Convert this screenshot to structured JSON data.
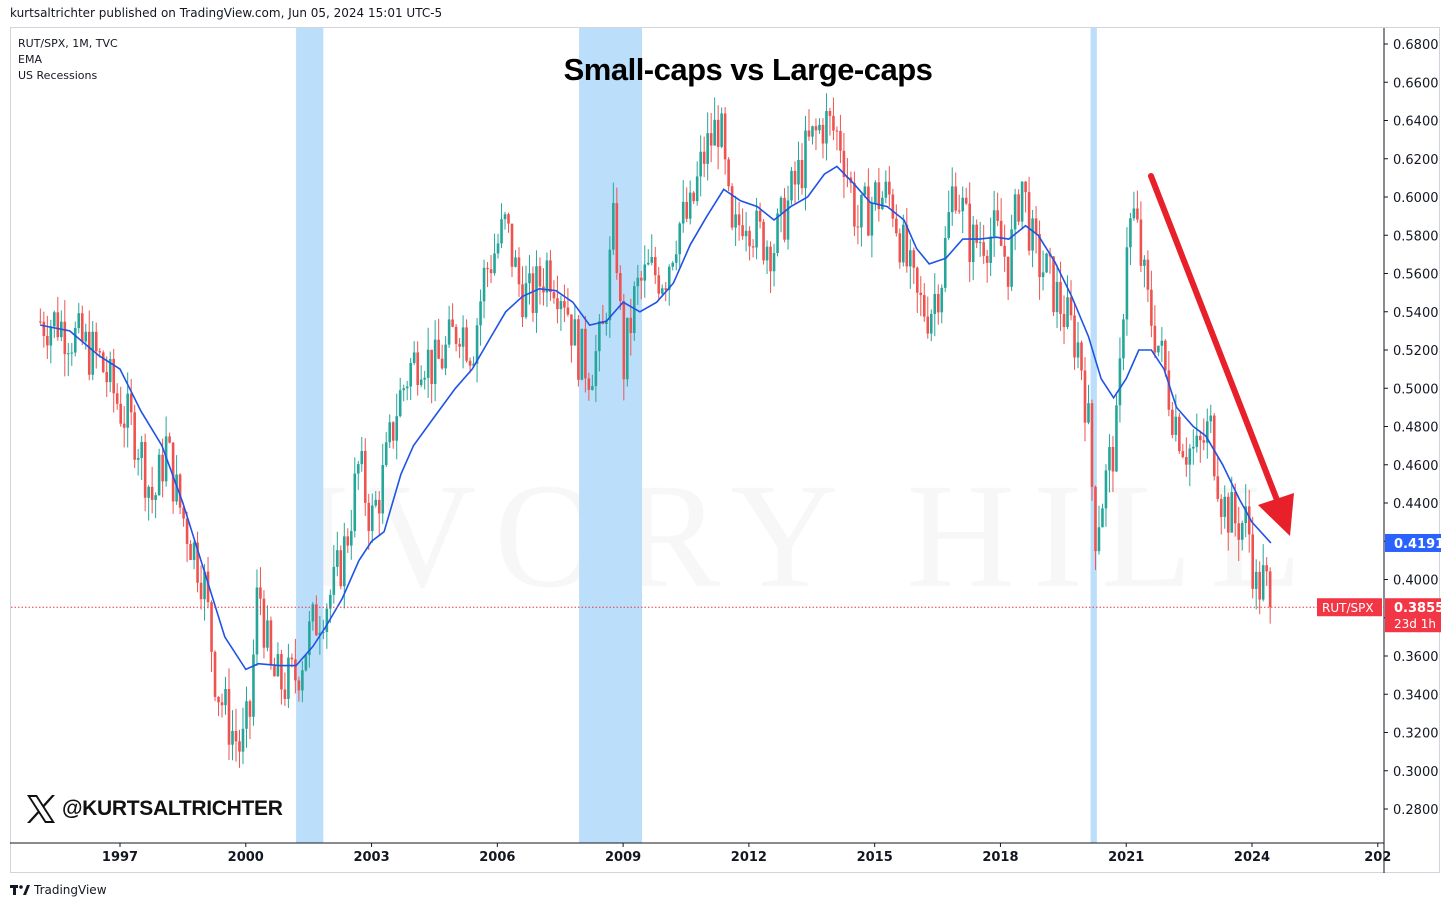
{
  "header": {
    "publisher": "kurtsaltrichter published on TradingView.com, Jun 05, 2024 15:01 UTC-5"
  },
  "legend": {
    "line1": "RUT/SPX, 1M, TVC",
    "line2": "EMA",
    "line3": "US Recessions"
  },
  "watermark": "IVORY HILL",
  "handle": "@KURTSALTRICHTER",
  "footer": {
    "brand": "TradingView"
  },
  "colors": {
    "up": "#26a69a",
    "down": "#ef5350",
    "ema": "#1e53e5",
    "recession": "#bbdefb",
    "arrow": "#e8202a",
    "price_label": "#f23645",
    "ema_label": "#2962ff"
  },
  "chart_data": {
    "type": "candlestick",
    "title": "Small-caps vs Large-caps",
    "symbol": "RUT/SPX",
    "ylim": [
      0.27,
      0.69
    ],
    "y_ticks": [
      "0.2800",
      "0.3000",
      "0.3200",
      "0.3400",
      "0.3600",
      "0.3800",
      "0.4000",
      "0.4200",
      "0.4400",
      "0.4600",
      "0.4800",
      "0.5000",
      "0.5200",
      "0.5400",
      "0.5600",
      "0.5800",
      "0.6000",
      "0.6200",
      "0.6400",
      "0.6600",
      "0.6800"
    ],
    "x_ticks": [
      "1997",
      "2000",
      "2003",
      "2006",
      "2009",
      "2012",
      "2015",
      "2018",
      "2021",
      "2024",
      "202"
    ],
    "x_range": [
      1995.1,
      2027.0
    ],
    "recessions": [
      [
        2001.2,
        2001.85
      ],
      [
        2007.95,
        2009.45
      ],
      [
        2020.15,
        2020.3
      ]
    ],
    "series_close": [
      [
        1995.1,
        0.535
      ],
      [
        1995.5,
        0.535
      ],
      [
        1996.0,
        0.525
      ],
      [
        1996.5,
        0.515
      ],
      [
        1997.0,
        0.49
      ],
      [
        1997.4,
        0.475
      ],
      [
        1997.8,
        0.44
      ],
      [
        1998.1,
        0.47
      ],
      [
        1998.4,
        0.44
      ],
      [
        1998.7,
        0.42
      ],
      [
        1999.0,
        0.4
      ],
      [
        1999.3,
        0.345
      ],
      [
        1999.6,
        0.325
      ],
      [
        1999.9,
        0.31
      ],
      [
        2000.1,
        0.33
      ],
      [
        2000.3,
        0.4
      ],
      [
        2000.6,
        0.35
      ],
      [
        2000.9,
        0.345
      ],
      [
        2001.2,
        0.35
      ],
      [
        2001.5,
        0.37
      ],
      [
        2001.8,
        0.385
      ],
      [
        2002.1,
        0.395
      ],
      [
        2002.4,
        0.42
      ],
      [
        2002.7,
        0.46
      ],
      [
        2003.0,
        0.43
      ],
      [
        2003.3,
        0.455
      ],
      [
        2003.6,
        0.49
      ],
      [
        2003.9,
        0.51
      ],
      [
        2004.2,
        0.52
      ],
      [
        2004.5,
        0.51
      ],
      [
        2004.8,
        0.52
      ],
      [
        2005.1,
        0.535
      ],
      [
        2005.4,
        0.52
      ],
      [
        2005.7,
        0.56
      ],
      [
        2006.0,
        0.575
      ],
      [
        2006.2,
        0.585
      ],
      [
        2006.5,
        0.555
      ],
      [
        2006.8,
        0.545
      ],
      [
        2007.2,
        0.565
      ],
      [
        2007.6,
        0.55
      ],
      [
        2007.9,
        0.52
      ],
      [
        2008.2,
        0.51
      ],
      [
        2008.5,
        0.525
      ],
      [
        2008.8,
        0.59
      ],
      [
        2009.0,
        0.51
      ],
      [
        2009.3,
        0.55
      ],
      [
        2009.6,
        0.56
      ],
      [
        2010.0,
        0.56
      ],
      [
        2010.3,
        0.585
      ],
      [
        2010.6,
        0.59
      ],
      [
        2010.9,
        0.62
      ],
      [
        2011.3,
        0.64
      ],
      [
        2011.6,
        0.575
      ],
      [
        2011.9,
        0.595
      ],
      [
        2012.2,
        0.58
      ],
      [
        2012.6,
        0.575
      ],
      [
        2013.0,
        0.6
      ],
      [
        2013.4,
        0.625
      ],
      [
        2013.8,
        0.64
      ],
      [
        2014.2,
        0.63
      ],
      [
        2014.6,
        0.585
      ],
      [
        2015.0,
        0.6
      ],
      [
        2015.4,
        0.6
      ],
      [
        2015.7,
        0.57
      ],
      [
        2016.0,
        0.545
      ],
      [
        2016.3,
        0.54
      ],
      [
        2016.6,
        0.56
      ],
      [
        2016.9,
        0.61
      ],
      [
        2017.3,
        0.575
      ],
      [
        2017.6,
        0.58
      ],
      [
        2017.9,
        0.58
      ],
      [
        2018.2,
        0.565
      ],
      [
        2018.5,
        0.61
      ],
      [
        2018.8,
        0.57
      ],
      [
        2019.1,
        0.56
      ],
      [
        2019.5,
        0.54
      ],
      [
        2019.9,
        0.52
      ],
      [
        2020.1,
        0.48
      ],
      [
        2020.25,
        0.425
      ],
      [
        2020.5,
        0.45
      ],
      [
        2020.8,
        0.48
      ],
      [
        2021.0,
        0.58
      ],
      [
        2021.2,
        0.59
      ],
      [
        2021.5,
        0.545
      ],
      [
        2021.8,
        0.52
      ],
      [
        2022.1,
        0.49
      ],
      [
        2022.4,
        0.47
      ],
      [
        2022.7,
        0.465
      ],
      [
        2023.0,
        0.48
      ],
      [
        2023.3,
        0.44
      ],
      [
        2023.6,
        0.43
      ],
      [
        2023.9,
        0.43
      ],
      [
        2024.1,
        0.395
      ],
      [
        2024.3,
        0.4
      ],
      [
        2024.45,
        0.3855
      ]
    ],
    "ema": [
      [
        1995.1,
        0.533
      ],
      [
        1995.8,
        0.53
      ],
      [
        1996.5,
        0.517
      ],
      [
        1997.0,
        0.51
      ],
      [
        1997.5,
        0.488
      ],
      [
        1998.0,
        0.47
      ],
      [
        1998.5,
        0.44
      ],
      [
        1999.0,
        0.405
      ],
      [
        1999.5,
        0.37
      ],
      [
        2000.0,
        0.353
      ],
      [
        2000.3,
        0.356
      ],
      [
        2000.8,
        0.355
      ],
      [
        2001.2,
        0.355
      ],
      [
        2001.6,
        0.365
      ],
      [
        2001.9,
        0.375
      ],
      [
        2002.3,
        0.39
      ],
      [
        2002.7,
        0.41
      ],
      [
        2003.0,
        0.42
      ],
      [
        2003.3,
        0.425
      ],
      [
        2003.7,
        0.455
      ],
      [
        2004.0,
        0.47
      ],
      [
        2004.5,
        0.485
      ],
      [
        2005.0,
        0.5
      ],
      [
        2005.4,
        0.51
      ],
      [
        2005.8,
        0.525
      ],
      [
        2006.2,
        0.54
      ],
      [
        2006.6,
        0.548
      ],
      [
        2007.0,
        0.552
      ],
      [
        2007.4,
        0.551
      ],
      [
        2007.8,
        0.545
      ],
      [
        2008.2,
        0.533
      ],
      [
        2008.6,
        0.535
      ],
      [
        2009.0,
        0.545
      ],
      [
        2009.4,
        0.54
      ],
      [
        2009.8,
        0.545
      ],
      [
        2010.2,
        0.555
      ],
      [
        2010.6,
        0.575
      ],
      [
        2011.0,
        0.59
      ],
      [
        2011.4,
        0.604
      ],
      [
        2011.8,
        0.598
      ],
      [
        2012.2,
        0.595
      ],
      [
        2012.6,
        0.588
      ],
      [
        2013.0,
        0.595
      ],
      [
        2013.4,
        0.6
      ],
      [
        2013.8,
        0.612
      ],
      [
        2014.1,
        0.616
      ],
      [
        2014.5,
        0.607
      ],
      [
        2014.9,
        0.597
      ],
      [
        2015.3,
        0.595
      ],
      [
        2015.7,
        0.588
      ],
      [
        2016.0,
        0.573
      ],
      [
        2016.3,
        0.565
      ],
      [
        2016.7,
        0.568
      ],
      [
        2017.1,
        0.578
      ],
      [
        2017.5,
        0.578
      ],
      [
        2017.9,
        0.579
      ],
      [
        2018.2,
        0.578
      ],
      [
        2018.6,
        0.585
      ],
      [
        2018.9,
        0.58
      ],
      [
        2019.3,
        0.566
      ],
      [
        2019.7,
        0.548
      ],
      [
        2020.1,
        0.527
      ],
      [
        2020.4,
        0.505
      ],
      [
        2020.7,
        0.495
      ],
      [
        2021.0,
        0.505
      ],
      [
        2021.3,
        0.52
      ],
      [
        2021.6,
        0.52
      ],
      [
        2021.9,
        0.51
      ],
      [
        2022.2,
        0.49
      ],
      [
        2022.6,
        0.48
      ],
      [
        2022.9,
        0.475
      ],
      [
        2023.3,
        0.46
      ],
      [
        2023.7,
        0.442
      ],
      [
        2024.0,
        0.43
      ],
      [
        2024.45,
        0.4191
      ]
    ],
    "last_price": {
      "label": "RUT/SPX",
      "value": "0.3855",
      "countdown": "23d 1h"
    },
    "ema_last": {
      "value": "0.4191"
    }
  }
}
